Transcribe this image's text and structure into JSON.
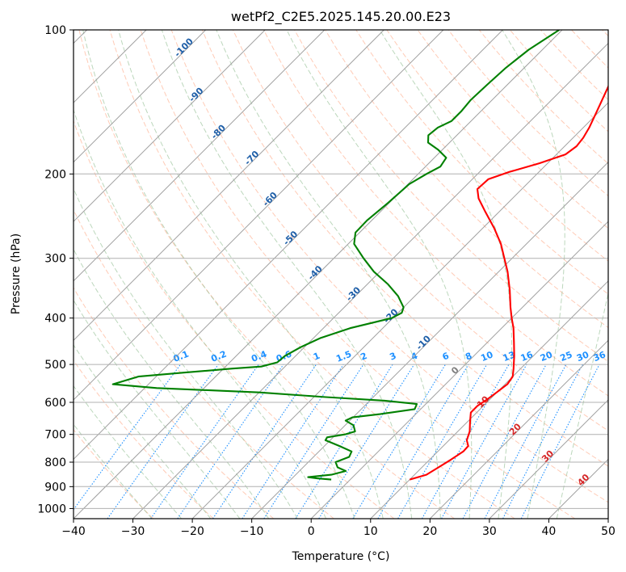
{
  "chart_data": {
    "type": "line",
    "subtype": "skew-T log-P diagram",
    "title": "wetPf2_C2E5.2025.145.20.00.E23",
    "xlabel": "Temperature (°C)",
    "ylabel": "Pressure (hPa)",
    "xlim": [
      -40,
      50
    ],
    "ylim": [
      1050,
      100
    ],
    "y_scale": "log",
    "x_ticks": [
      -40,
      -30,
      -20,
      -10,
      0,
      10,
      20,
      30,
      40,
      50
    ],
    "x_tick_labels": [
      "−40",
      "−30",
      "−20",
      "−10",
      "0",
      "10",
      "20",
      "30",
      "40",
      "50"
    ],
    "y_ticks": [
      1000,
      900,
      800,
      700,
      600,
      500,
      400,
      300,
      200,
      100
    ],
    "y_tick_labels": [
      "1000",
      "900",
      "800",
      "700",
      "600",
      "500",
      "400",
      "300",
      "200",
      "100"
    ],
    "grid": true,
    "colors": {
      "temperature": "#ff0000",
      "dewpoint": "#008000",
      "isotherm_grid": "#a0a0a0",
      "dry_adiabat": "#ffa07a",
      "moist_adiabat": "#8fbc8f",
      "mixing_ratio": "#1e90ff",
      "mixing_ratio_labels": "#1e90ff",
      "isotherm_labels": "#1f5fa8",
      "warm_labels": "#d62728"
    },
    "series": [
      {
        "role": "temperature",
        "points": [
          [
            870,
            10.0
          ],
          [
            850,
            12.0
          ],
          [
            820,
            12.8
          ],
          [
            790,
            13.6
          ],
          [
            760,
            14.3
          ],
          [
            740,
            14.2
          ],
          [
            720,
            13.0
          ],
          [
            690,
            12.0
          ],
          [
            660,
            10.5
          ],
          [
            630,
            9.0
          ],
          [
            610,
            9.0
          ],
          [
            590,
            9.6
          ],
          [
            570,
            10.0
          ],
          [
            550,
            10.4
          ],
          [
            530,
            10.0
          ],
          [
            510,
            8.8
          ],
          [
            480,
            6.8
          ],
          [
            450,
            4.5
          ],
          [
            420,
            2.0
          ],
          [
            400,
            0.0
          ],
          [
            380,
            -2.0
          ],
          [
            350,
            -5.0
          ],
          [
            320,
            -8.5
          ],
          [
            300,
            -11.3
          ],
          [
            280,
            -14.3
          ],
          [
            260,
            -18.0
          ],
          [
            240,
            -22.3
          ],
          [
            225,
            -25.7
          ],
          [
            215,
            -27.5
          ],
          [
            205,
            -27.3
          ],
          [
            198,
            -25.0
          ],
          [
            190,
            -21.4
          ],
          [
            182,
            -18.5
          ],
          [
            175,
            -18.0
          ],
          [
            168,
            -18.3
          ],
          [
            160,
            -19.0
          ],
          [
            150,
            -20.2
          ],
          [
            140,
            -21.5
          ],
          [
            130,
            -22.9
          ],
          [
            120,
            -24.5
          ],
          [
            110,
            -26.6
          ],
          [
            100,
            -29.3
          ]
        ]
      },
      {
        "role": "dewpoint",
        "points": [
          [
            870,
            -3.2
          ],
          [
            865,
            -5.8
          ],
          [
            860,
            -7.5
          ],
          [
            850,
            -4.0
          ],
          [
            835,
            -2.2
          ],
          [
            820,
            -4.2
          ],
          [
            800,
            -5.4
          ],
          [
            780,
            -4.0
          ],
          [
            760,
            -4.5
          ],
          [
            740,
            -7.5
          ],
          [
            720,
            -10.8
          ],
          [
            710,
            -11.0
          ],
          [
            700,
            -8.5
          ],
          [
            690,
            -7.3
          ],
          [
            670,
            -8.6
          ],
          [
            655,
            -10.7
          ],
          [
            645,
            -10.1
          ],
          [
            635,
            -6.0
          ],
          [
            620,
            -1.0
          ],
          [
            605,
            -1.5
          ],
          [
            595,
            -7.5
          ],
          [
            585,
            -18.0
          ],
          [
            572,
            -30.0
          ],
          [
            560,
            -48.0
          ],
          [
            550,
            -56.0
          ],
          [
            530,
            -53.0
          ],
          [
            520,
            -46.0
          ],
          [
            510,
            -38.5
          ],
          [
            505,
            -34.0
          ],
          [
            495,
            -32.0
          ],
          [
            480,
            -31.8
          ],
          [
            460,
            -30.6
          ],
          [
            440,
            -28.8
          ],
          [
            420,
            -25.5
          ],
          [
            400,
            -20.2
          ],
          [
            390,
            -19.4
          ],
          [
            380,
            -20.0
          ],
          [
            360,
            -22.8
          ],
          [
            340,
            -26.5
          ],
          [
            320,
            -31.0
          ],
          [
            300,
            -35.0
          ],
          [
            280,
            -39.0
          ],
          [
            265,
            -40.7
          ],
          [
            250,
            -40.8
          ],
          [
            230,
            -40.2
          ],
          [
            210,
            -39.8
          ],
          [
            200,
            -38.6
          ],
          [
            193,
            -37.5
          ],
          [
            185,
            -38.0
          ],
          [
            178,
            -40.7
          ],
          [
            172,
            -43.6
          ],
          [
            166,
            -44.8
          ],
          [
            160,
            -44.5
          ],
          [
            155,
            -43.3
          ],
          [
            148,
            -43.3
          ],
          [
            140,
            -43.6
          ],
          [
            130,
            -43.4
          ],
          [
            120,
            -43.1
          ],
          [
            110,
            -42.3
          ],
          [
            100,
            -40.5
          ]
        ]
      }
    ],
    "isotherm_labels": [
      "-100",
      "-90",
      "-80",
      "-70",
      "-60",
      "-50",
      "-40",
      "-30",
      "-20",
      "-10"
    ],
    "mixing_ratio_labels": [
      "0.1",
      "0.2",
      "0.4",
      "0.6",
      "1",
      "1.5",
      "2",
      "3",
      "4",
      "6",
      "8",
      "10",
      "13",
      "16",
      "20",
      "25",
      "30",
      "36"
    ],
    "other_labels": [
      "0",
      "10",
      "20",
      "30",
      "40"
    ]
  }
}
